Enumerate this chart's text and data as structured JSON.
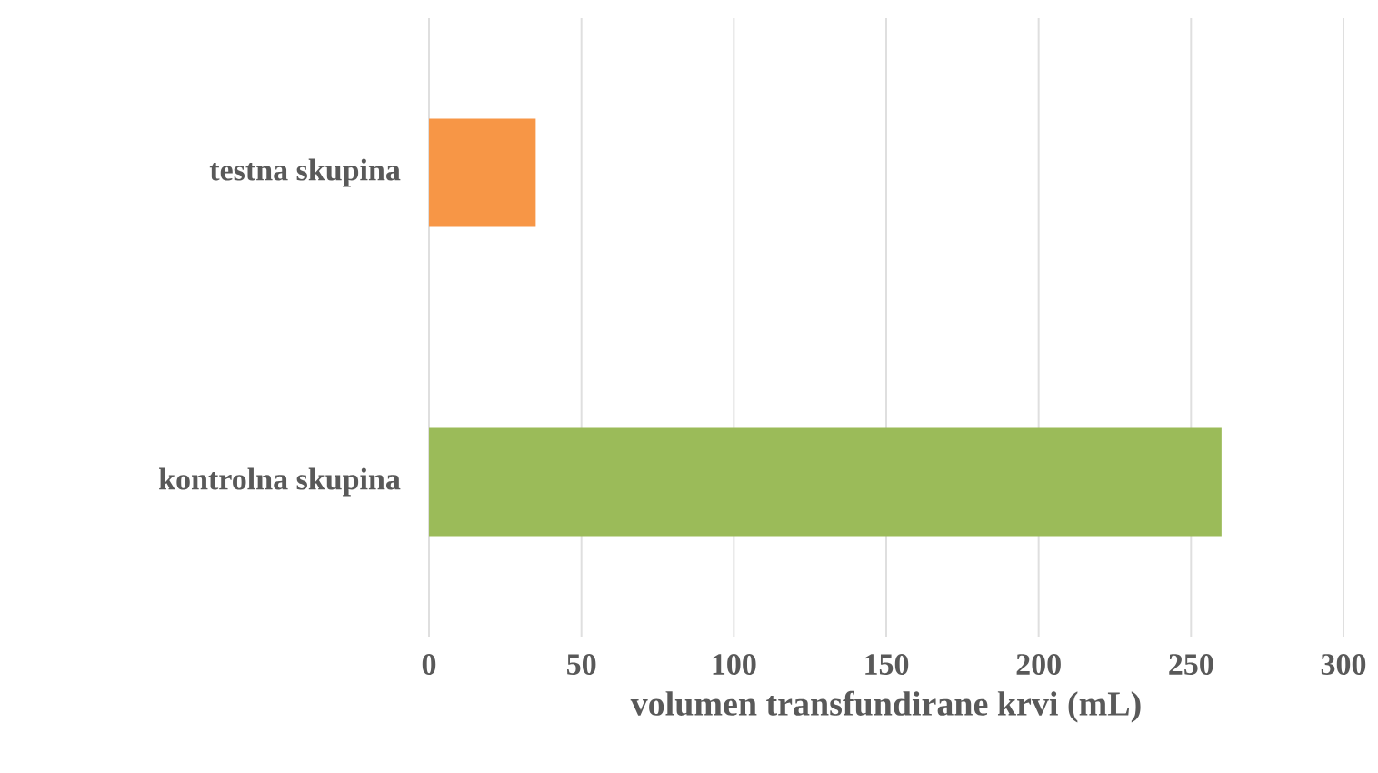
{
  "chart_data": {
    "type": "bar",
    "orientation": "horizontal",
    "xlabel": "volumen transfundirane krvi (mL)",
    "categories": [
      "testna skupina",
      "kontrolna skupina"
    ],
    "values": [
      35,
      260
    ],
    "colors": [
      "#f79646",
      "#9bbb59"
    ],
    "xlim": [
      0,
      300
    ],
    "xticks": [
      0,
      50,
      100,
      150,
      200,
      250,
      300
    ],
    "grid": "x"
  }
}
